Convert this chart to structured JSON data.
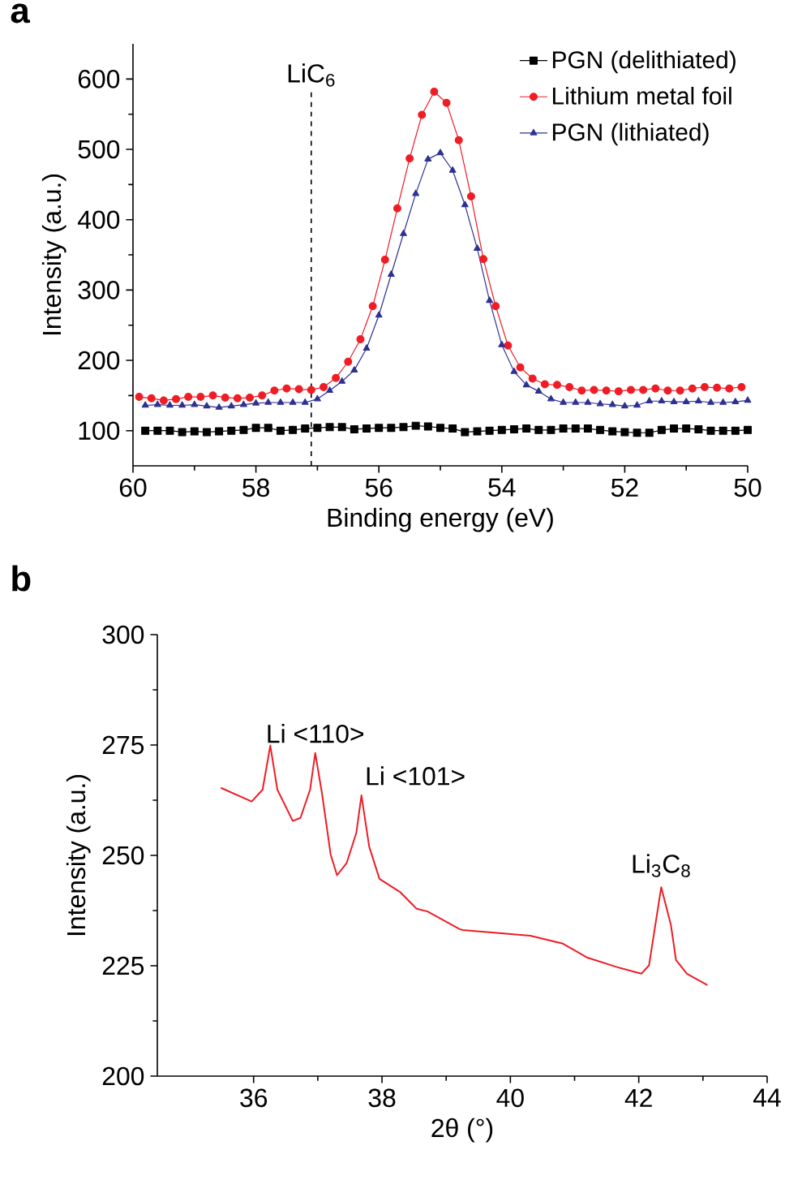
{
  "chart_data": [
    {
      "type": "line",
      "title": "a",
      "xlabel": "Binding energy (eV)",
      "ylabel": "Intensity (a.u.)",
      "xlim": [
        60,
        50
      ],
      "ylim": [
        50,
        650
      ],
      "xticks": [
        60,
        58,
        56,
        54,
        52,
        50
      ],
      "yticks": [
        100,
        200,
        300,
        400,
        500,
        600
      ],
      "legend": "top right",
      "line_style": "solid",
      "ref_lines": [
        {
          "axis": "x",
          "value": 57.1,
          "label": "LiC$_{6}$",
          "color": "#000000",
          "line_style": "dashed"
        }
      ],
      "series": [
        {
          "name": "PGN (delithiated)",
          "color": "#000000",
          "marker": "square",
          "x": [
            59.8,
            59.6,
            59.4,
            59.2,
            59.0,
            58.8,
            58.6,
            58.4,
            58.2,
            58.0,
            57.8,
            57.6,
            57.4,
            57.2,
            57.0,
            56.8,
            56.6,
            56.4,
            56.2,
            56.0,
            55.8,
            55.6,
            55.4,
            55.2,
            55.0,
            54.8,
            54.6,
            54.4,
            54.2,
            54.0,
            53.8,
            53.6,
            53.4,
            53.2,
            53.0,
            52.8,
            52.6,
            52.4,
            52.2,
            52.0,
            51.8,
            51.6,
            51.4,
            51.2,
            51.0,
            50.8,
            50.6,
            50.4,
            50.2,
            50.0
          ],
          "values": [
            100,
            100,
            100,
            98,
            99,
            98,
            99,
            100,
            101,
            104,
            104,
            100,
            101,
            103,
            104,
            105,
            105,
            102,
            103,
            104,
            104,
            105,
            107,
            106,
            104,
            103,
            98,
            99,
            100,
            101,
            102,
            103,
            101,
            101,
            103,
            103,
            103,
            101,
            99,
            98,
            97,
            97,
            101,
            103,
            103,
            102,
            100,
            100,
            100,
            101
          ]
        },
        {
          "name": "Lithium metal foil",
          "color": "#ee1c25",
          "marker": "circle",
          "x": [
            59.9,
            59.7,
            59.5,
            59.3,
            59.1,
            58.9,
            58.7,
            58.5,
            58.3,
            58.1,
            57.9,
            57.7,
            57.5,
            57.3,
            57.1,
            56.9,
            56.7,
            56.5,
            56.3,
            56.1,
            55.9,
            55.7,
            55.5,
            55.3,
            55.1,
            54.9,
            54.7,
            54.5,
            54.3,
            54.1,
            53.9,
            53.7,
            53.5,
            53.3,
            53.1,
            52.9,
            52.7,
            52.5,
            52.3,
            52.1,
            51.9,
            51.7,
            51.5,
            51.3,
            51.1,
            50.9,
            50.7,
            50.5,
            50.3,
            50.1
          ],
          "values": [
            148,
            146,
            143,
            145,
            148,
            148,
            150,
            147,
            146,
            147,
            150,
            157,
            160,
            159,
            158,
            162,
            175,
            198,
            230,
            277,
            343,
            416,
            487,
            549,
            582,
            566,
            513,
            433,
            344,
            277,
            221,
            190,
            174,
            166,
            165,
            162,
            157,
            158,
            157,
            156,
            158,
            158,
            160,
            157,
            157,
            160,
            162,
            161,
            160,
            162
          ]
        },
        {
          "name": "PGN (lithiated)",
          "color": "#2e3192",
          "marker": "triangle",
          "x": [
            59.8,
            59.6,
            59.4,
            59.2,
            59.0,
            58.8,
            58.6,
            58.4,
            58.2,
            58.0,
            57.8,
            57.6,
            57.4,
            57.2,
            57.0,
            56.8,
            56.6,
            56.4,
            56.2,
            56.0,
            55.8,
            55.6,
            55.4,
            55.2,
            55.0,
            54.8,
            54.6,
            54.4,
            54.2,
            54.0,
            53.8,
            53.6,
            53.4,
            53.2,
            53.0,
            52.8,
            52.6,
            52.4,
            52.2,
            52.0,
            51.8,
            51.6,
            51.4,
            51.2,
            51.0,
            50.8,
            50.6,
            50.4,
            50.2,
            50.0
          ],
          "values": [
            136,
            137,
            136,
            136,
            137,
            135,
            133,
            135,
            137,
            139,
            140,
            140,
            140,
            140,
            145,
            157,
            170,
            186,
            217,
            264,
            322,
            380,
            437,
            486,
            495,
            470,
            421,
            359,
            285,
            222,
            184,
            165,
            156,
            145,
            140,
            140,
            140,
            138,
            137,
            135,
            136,
            142,
            142,
            141,
            141,
            142,
            140,
            140,
            141,
            143
          ]
        }
      ]
    },
    {
      "type": "line",
      "title": "b",
      "xlabel": "2θ (°)",
      "ylabel": "Intensity (a.u.)",
      "xlim": [
        34.5,
        44
      ],
      "ylim": [
        200,
        300
      ],
      "xticks": [
        36,
        38,
        40,
        42,
        44
      ],
      "yticks": [
        200,
        225,
        250,
        275,
        300
      ],
      "annotations": [
        {
          "text": "Li <110>",
          "x": 36.96,
          "y": 273.2
        },
        {
          "text": "Li <101>",
          "x": 37.68,
          "y": 263.6
        },
        {
          "text": "Li$_{3}$C$_{8}$",
          "x": 42.35,
          "y": 242.8
        }
      ],
      "series": [
        {
          "color": "#ee1c25",
          "x": [
            35.49,
            35.97,
            36.14,
            36.26,
            36.37,
            36.61,
            36.73,
            36.88,
            36.96,
            37.07,
            37.2,
            37.3,
            37.45,
            37.6,
            37.68,
            37.8,
            37.96,
            38.29,
            38.54,
            38.71,
            39.21,
            39.26,
            40.31,
            40.82,
            41.19,
            41.66,
            42.04,
            42.16,
            42.35,
            42.5,
            42.58,
            42.75,
            43.07
          ],
          "values": [
            265.3,
            262.2,
            264.9,
            274.9,
            264.9,
            257.8,
            258.5,
            264.9,
            273.2,
            263.6,
            250.2,
            245.5,
            248.3,
            255.1,
            263.6,
            252,
            244.7,
            241.6,
            237.9,
            237.3,
            233.3,
            233.1,
            231.8,
            230,
            226.9,
            224.7,
            223.2,
            225.1,
            242.8,
            234.3,
            226.3,
            223.2,
            220.6
          ]
        }
      ]
    }
  ]
}
